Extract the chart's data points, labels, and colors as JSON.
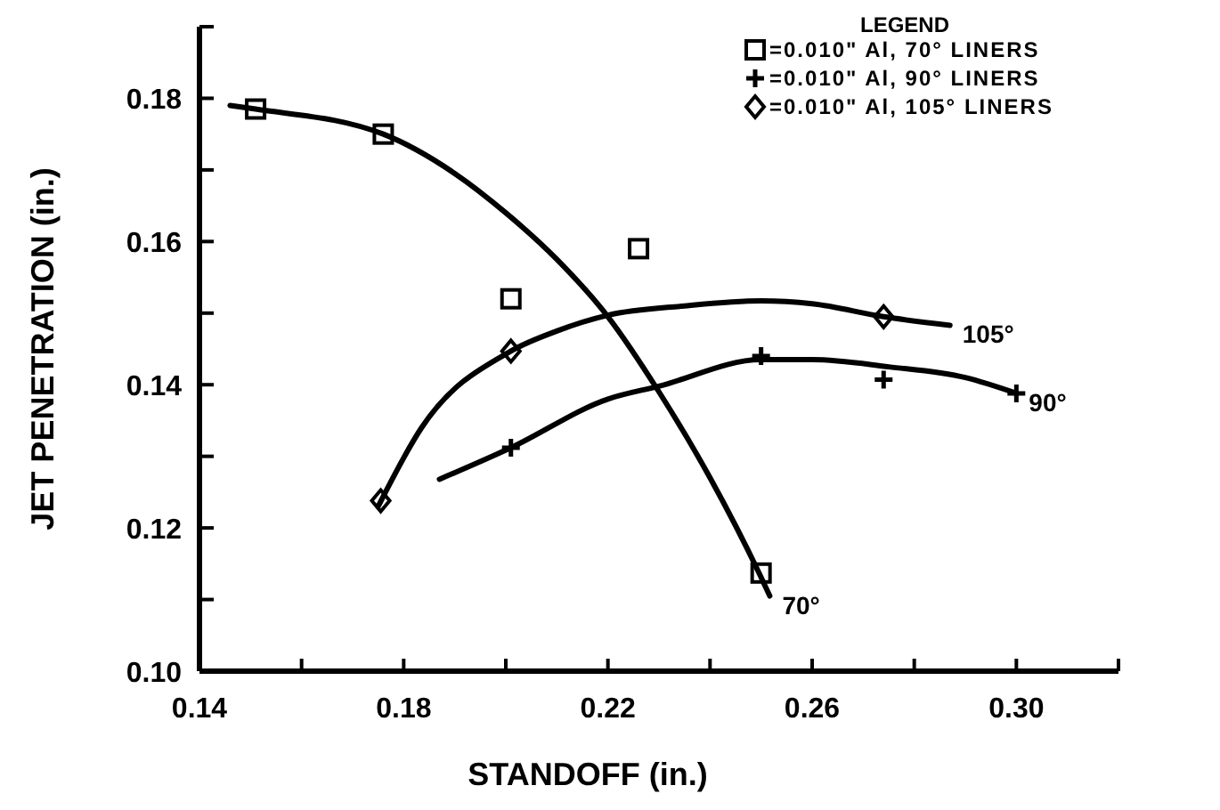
{
  "chart_data": {
    "type": "scatter",
    "xlabel": "STANDOFF (in.)",
    "ylabel": "JET PENETRATION (in.)",
    "legend_title": "LEGEND",
    "legend": "top right",
    "xlim": [
      0.14,
      0.32
    ],
    "xticks": [
      0.14,
      {
        "value": 0.16,
        "label": null
      },
      0.18,
      {
        "value": 0.2,
        "label": null
      },
      0.22,
      {
        "value": 0.24,
        "label": null
      },
      0.26,
      {
        "value": 0.28,
        "label": null
      },
      "0.30",
      {
        "value": 0.32,
        "label": null
      }
    ],
    "ylim": [
      0.1,
      0.19
    ],
    "yticks": [
      "0.10",
      {
        "value": 0.11,
        "label": null
      },
      0.12,
      {
        "value": 0.13,
        "label": null
      },
      0.14,
      {
        "value": 0.15,
        "label": null
      },
      0.16,
      {
        "value": 0.17,
        "label": null
      },
      0.18,
      {
        "value": 0.19,
        "label": null
      }
    ],
    "grid": false,
    "series": [
      {
        "name": "=0.010\" Al, 70° LINERS",
        "type": "scatter",
        "marker": "square",
        "color": "#000000",
        "x": [
          0.151,
          0.176,
          0.201,
          0.226,
          0.25
        ],
        "values": [
          0.1785,
          0.175,
          0.152,
          0.159,
          0.1137
        ]
      },
      {
        "name": "=0.010\" Al, 90° LINERS",
        "type": "scatter",
        "marker": "cross",
        "color": "#000000",
        "x": [
          0.201,
          0.25,
          0.274,
          0.3
        ],
        "values": [
          0.1312,
          0.144,
          0.1407,
          0.1388
        ]
      },
      {
        "name": "=0.010\" Al, 105° LINERS",
        "type": "scatter",
        "marker": "diamond",
        "color": "#000000",
        "x": [
          0.1755,
          0.201,
          0.274
        ],
        "values": [
          0.1238,
          0.1447,
          0.1495
        ]
      },
      {
        "name": "70°",
        "type": "line",
        "marker": "none",
        "color": "#000000",
        "x": [
          0.146,
          0.151,
          0.176,
          0.19,
          0.2,
          0.21,
          0.22,
          0.23,
          0.24,
          0.2496,
          0.2517
        ],
        "values": [
          0.179,
          0.1785,
          0.175,
          0.1695,
          0.164,
          0.1575,
          0.1495,
          0.139,
          0.127,
          0.1137,
          0.1105
        ]
      },
      {
        "name": "90°",
        "type": "line",
        "marker": "none",
        "color": "#000000",
        "x": [
          0.187,
          0.201,
          0.22,
          0.23,
          0.25,
          0.26,
          0.275,
          0.29,
          0.3
        ],
        "values": [
          0.1268,
          0.1312,
          0.138,
          0.1398,
          0.1435,
          0.1435,
          0.1425,
          0.141,
          0.1388
        ]
      },
      {
        "name": "105°",
        "type": "line",
        "marker": "none",
        "color": "#000000",
        "x": [
          0.175,
          0.1835,
          0.201,
          0.21,
          0.22,
          0.235,
          0.25,
          0.26,
          0.274,
          0.287
        ],
        "values": [
          0.123,
          0.134,
          0.1447,
          0.1475,
          0.1497,
          0.151,
          0.1517,
          0.1513,
          0.1495,
          0.1483
        ]
      }
    ]
  }
}
